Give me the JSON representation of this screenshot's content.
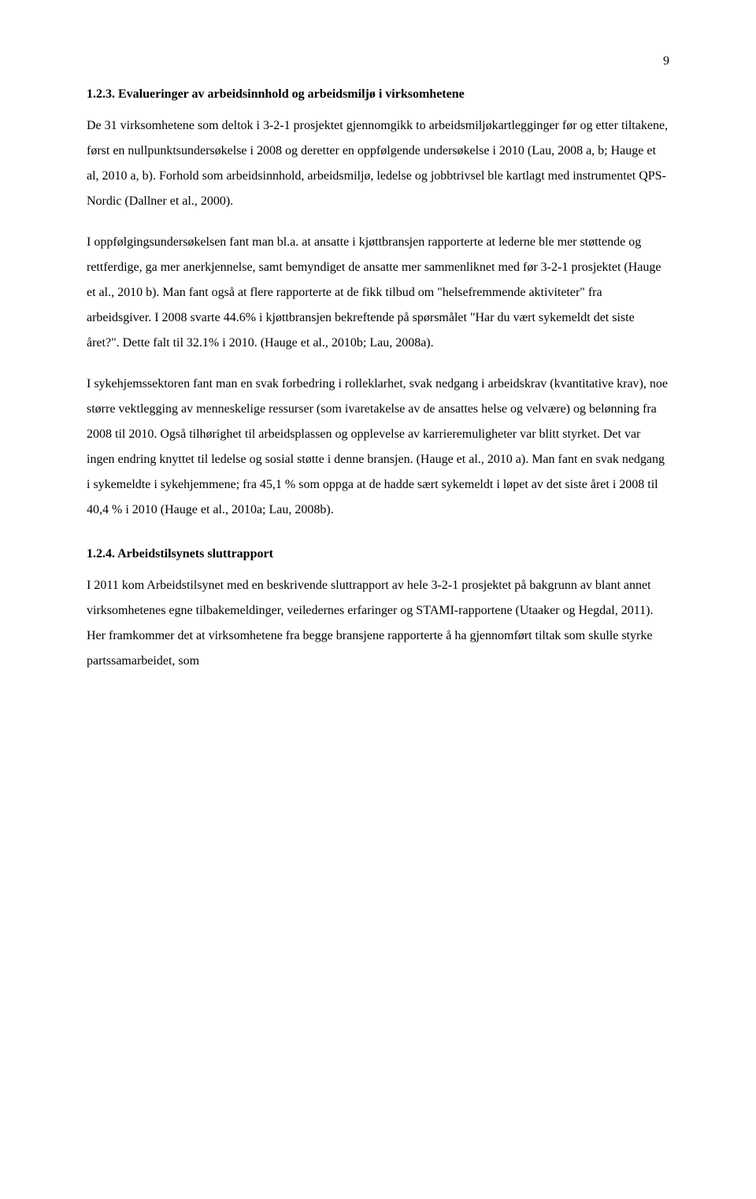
{
  "page_number": "9",
  "section1": {
    "heading": "1.2.3. Evalueringer av arbeidsinnhold og arbeidsmiljø i virksomhetene",
    "p1": "De 31 virksomhetene som deltok i 3-2-1 prosjektet gjennomgikk to arbeidsmiljøkartlegginger før og etter tiltakene, først en nullpunktsundersøkelse i 2008 og deretter en oppfølgende undersøkelse i 2010 (Lau, 2008 a, b; Hauge et al, 2010 a, b). Forhold som arbeidsinnhold, arbeidsmiljø, ledelse og jobbtrivsel ble kartlagt med instrumentet QPS-Nordic (Dallner et al., 2000).",
    "p2": "I oppfølgingsundersøkelsen fant man bl.a. at ansatte i kjøttbransjen rapporterte at lederne ble mer støttende og rettferdige, ga mer anerkjennelse, samt bemyndiget de ansatte mer sammenliknet med før 3-2-1 prosjektet (Hauge et al., 2010 b). Man fant også at flere rapporterte at de fikk tilbud om \"helsefremmende aktiviteter\" fra arbeidsgiver. I 2008 svarte 44.6% i kjøttbransjen bekreftende på spørsmålet \"Har du vært sykemeldt det siste året?\". Dette falt til 32.1% i 2010. (Hauge et al., 2010b; Lau, 2008a).",
    "p3": "I sykehjemssektoren fant man en svak forbedring i rolleklarhet, svak nedgang i arbeidskrav (kvantitative krav), noe større vektlegging av menneskelige ressurser (som ivaretakelse av de ansattes helse og velvære) og belønning fra 2008 til 2010. Også tilhørighet til arbeidsplassen og opplevelse av karrieremuligheter var blitt styrket. Det var ingen endring knyttet til ledelse og sosial støtte i denne bransjen. (Hauge et al., 2010 a). Man fant en svak nedgang i sykemeldte i sykehjemmene; fra 45,1 % som oppga at de hadde sært sykemeldt i løpet av det siste året i 2008 til 40,4 % i 2010 (Hauge et al., 2010a; Lau, 2008b)."
  },
  "section2": {
    "heading": "1.2.4. Arbeidstilsynets sluttrapport",
    "p1": "I 2011 kom Arbeidstilsynet med en beskrivende sluttrapport av hele 3-2-1 prosjektet på bakgrunn av blant annet virksomhetenes egne tilbakemeldinger, veiledernes erfaringer og STAMI-rapportene (Utaaker og Hegdal, 2011).  Her framkommer det at virksomhetene fra begge bransjene rapporterte å ha gjennomført tiltak som skulle styrke partssamarbeidet, som"
  }
}
